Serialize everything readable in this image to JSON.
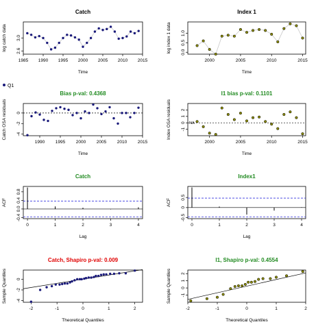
{
  "colors": {
    "black": "#000000",
    "navy_point": "#1a1a7a",
    "olive_point": "#8b8b00",
    "olive_stroke": "#000000",
    "green_title": "#228b22",
    "red_title": "#e00000",
    "line_grey": "#c8c8c8",
    "blue_dash": "#3333dd"
  },
  "legend": {
    "label": "Q1"
  },
  "chart_data": [
    {
      "id": "catch-ts",
      "type": "line",
      "title": "Catch",
      "title_color": "#000000",
      "xlabel": "Time",
      "ylabel": "log catch data",
      "xlim": [
        1985,
        2015
      ],
      "ylim": [
        2.5,
        3.5
      ],
      "xticks": [
        1985,
        1990,
        1995,
        2000,
        2005,
        2010,
        2015
      ],
      "yticks": [
        2.6,
        3.0
      ],
      "ytick_labels": [
        "2.6",
        "3.0"
      ],
      "point_style": "navy",
      "x": [
        1986,
        1987,
        1988,
        1989,
        1990,
        1991,
        1992,
        1993,
        1994,
        1995,
        1996,
        1997,
        1998,
        1999,
        2000,
        2001,
        2002,
        2003,
        2004,
        2005,
        2006,
        2007,
        2008,
        2009,
        2010,
        2011,
        2012,
        2013,
        2014
      ],
      "y": [
        3.15,
        3.1,
        3.02,
        3.06,
        3.0,
        2.85,
        2.65,
        2.7,
        2.85,
        3.0,
        3.1,
        3.08,
        3.02,
        2.95,
        2.73,
        2.85,
        3.0,
        3.2,
        3.3,
        3.25,
        3.28,
        3.35,
        3.2,
        2.98,
        3.0,
        3.05,
        3.2,
        3.15,
        3.22
      ]
    },
    {
      "id": "index-ts",
      "type": "line",
      "title": "Index 1",
      "title_color": "#000000",
      "xlabel": "Time",
      "ylabel": "log index 1 data",
      "xlim": [
        1996.5,
        2015.5
      ],
      "ylim": [
        -0.1,
        1.6
      ],
      "xticks": [
        2000,
        2005,
        2010,
        2015
      ],
      "yticks": [
        0.0,
        0.5,
        1.0
      ],
      "ytick_labels": [
        "0.0",
        "0.5",
        "1.0"
      ],
      "point_style": "olive",
      "x": [
        1998,
        1999,
        2000,
        2001,
        2002,
        2003,
        2004,
        2005,
        2006,
        2007,
        2008,
        2009,
        2010,
        2011,
        2012,
        2013,
        2014,
        2015
      ],
      "y": [
        0.35,
        0.6,
        0.15,
        -0.1,
        0.85,
        0.9,
        0.85,
        1.2,
        1.05,
        1.15,
        1.2,
        1.15,
        0.95,
        0.55,
        1.25,
        1.5,
        1.4,
        0.75
      ]
    },
    {
      "id": "catch-osa",
      "type": "scatter",
      "title": "Bias p-val: 0.4368",
      "title_color": "#228b22",
      "xlabel": "Time",
      "ylabel": "Catch OSA residuals",
      "xlim": [
        1986,
        2015
      ],
      "ylim": [
        -4.3,
        1.8
      ],
      "xticks": [
        1990,
        1995,
        2000,
        2005,
        2010,
        2015
      ],
      "yticks": [
        -4,
        -2,
        0
      ],
      "ytick_labels": [
        "-4",
        "-2",
        "0"
      ],
      "point_style": "navy",
      "hline": 0,
      "x": [
        1987,
        1988,
        1989,
        1990,
        1991,
        1992,
        1993,
        1994,
        1995,
        1996,
        1997,
        1998,
        1999,
        2000,
        2001,
        2002,
        2003,
        2004,
        2005,
        2006,
        2007,
        2008,
        2009,
        2010,
        2011,
        2012,
        2013,
        2014
      ],
      "y": [
        -4.2,
        -0.6,
        0.1,
        -0.3,
        -1.3,
        -1.5,
        0.4,
        0.9,
        1.1,
        0.8,
        0.6,
        -0.4,
        0.0,
        -1.0,
        0.3,
        0.0,
        1.6,
        0.9,
        -0.2,
        0.3,
        1.1,
        -1.0,
        -2.0,
        0.0,
        0.0,
        -0.8,
        0.0,
        1.0
      ]
    },
    {
      "id": "index-osa",
      "type": "scatter",
      "title": "I1 bias p-val: 0.1101",
      "title_color": "#228b22",
      "xlabel": "Time",
      "ylabel": "Index OSA residuals",
      "xlim": [
        1996.5,
        2015.5
      ],
      "ylim": [
        -2.0,
        3.0
      ],
      "xticks": [
        2000,
        2005,
        2010,
        2015
      ],
      "yticks": [
        -1,
        0,
        1,
        2
      ],
      "ytick_labels": [
        "-1",
        "0",
        "1",
        "2"
      ],
      "point_style": "olive",
      "hline": 0,
      "na_label": "NA",
      "x": [
        1998,
        1999,
        2000,
        2001,
        2002,
        2003,
        2004,
        2005,
        2006,
        2007,
        2008,
        2009,
        2010,
        2011,
        2012,
        2013,
        2014,
        2015
      ],
      "y": [
        0.2,
        -0.6,
        -1.6,
        -1.8,
        2.3,
        1.3,
        0.5,
        1.5,
        0.3,
        0.8,
        0.9,
        0.2,
        -0.2,
        -0.9,
        1.3,
        1.7,
        0.8,
        -1.7
      ]
    },
    {
      "id": "catch-acf",
      "type": "bar",
      "title": "Catch",
      "title_color": "#228b22",
      "xlabel": "Lag",
      "ylabel": "ACF",
      "xlim": [
        -0.15,
        4.15
      ],
      "ylim": [
        -0.45,
        1.05
      ],
      "xticks": [
        0,
        1,
        2,
        3,
        4
      ],
      "yticks": [
        -0.4,
        0.0,
        0.4,
        0.8
      ],
      "ytick_labels": [
        "-0.4",
        "0.0",
        "0.4",
        "0.8"
      ],
      "lags": [
        0,
        1,
        2,
        3,
        4
      ],
      "values": [
        1.0,
        0.12,
        0.06,
        -0.02,
        0.08
      ],
      "ci": 0.37
    },
    {
      "id": "index-acf",
      "type": "bar",
      "title": "Index1",
      "title_color": "#228b22",
      "xlabel": "Lag",
      "ylabel": "ACF",
      "xlim": [
        -0.15,
        4.15
      ],
      "ylim": [
        -0.55,
        1.05
      ],
      "xticks": [
        0,
        1,
        2,
        3,
        4
      ],
      "yticks": [
        -0.5,
        0.0,
        0.5
      ],
      "ytick_labels": [
        "-0.5",
        "0",
        "0.5"
      ],
      "lags": [
        0,
        1,
        2,
        3,
        4
      ],
      "values": [
        1.0,
        0.05,
        -0.35,
        -0.15,
        0.02
      ],
      "ci": 0.47
    },
    {
      "id": "catch-qq",
      "type": "scatter",
      "title": "Catch, Shapiro p-val: 0.009",
      "title_color": "#e00000",
      "xlabel": "Theoretical Quantiles",
      "ylabel": "Sample Quantiles",
      "xlim": [
        -2.3,
        2.3
      ],
      "ylim": [
        -4.3,
        1.7
      ],
      "xticks": [
        -2,
        -1,
        0,
        1,
        2
      ],
      "yticks": [
        -4,
        -2,
        0
      ],
      "ytick_labels": [
        "-4",
        "-2",
        "0"
      ],
      "point_style": "navy",
      "qqline": [
        [
          -2.3,
          -1.78
        ],
        [
          2.3,
          1.78
        ]
      ],
      "x": [
        -2.0,
        -1.65,
        -1.4,
        -1.2,
        -1.05,
        -0.9,
        -0.8,
        -0.7,
        -0.6,
        -0.5,
        -0.42,
        -0.32,
        -0.22,
        -0.12,
        -0.05,
        0.05,
        0.12,
        0.22,
        0.32,
        0.42,
        0.5,
        0.6,
        0.7,
        0.8,
        0.9,
        1.05,
        1.2,
        1.4,
        1.65,
        2.0
      ],
      "y": [
        -4.2,
        -2.0,
        -1.5,
        -1.3,
        -1.0,
        -1.0,
        -0.9,
        -0.8,
        -0.8,
        -0.6,
        -0.4,
        -0.2,
        0.0,
        0.0,
        0.0,
        0.1,
        0.2,
        0.3,
        0.3,
        0.4,
        0.6,
        0.6,
        0.8,
        0.9,
        0.9,
        1.0,
        1.0,
        1.1,
        1.1,
        1.6
      ]
    },
    {
      "id": "index-qq",
      "type": "scatter",
      "title": "I1, Shapiro p-val: 0.4554",
      "title_color": "#228b22",
      "xlabel": "Theoretical Quantiles",
      "ylabel": "Sample Quantiles",
      "xlim": [
        -2.0,
        2.0
      ],
      "ylim": [
        -2.0,
        2.5
      ],
      "xticks": [
        -2,
        -1,
        0,
        1,
        2
      ],
      "yticks": [
        -1,
        0,
        1,
        2
      ],
      "ytick_labels": [
        "-1",
        "0",
        "1",
        "2"
      ],
      "point_style": "olive",
      "qqline": [
        [
          -2.0,
          -1.6
        ],
        [
          2.0,
          2.1
        ]
      ],
      "x": [
        -1.9,
        -1.35,
        -1.0,
        -0.8,
        -0.55,
        -0.4,
        -0.28,
        -0.16,
        -0.05,
        0.05,
        0.16,
        0.28,
        0.4,
        0.55,
        0.8,
        1.0,
        1.35,
        1.9
      ],
      "y": [
        -1.8,
        -1.5,
        -1.3,
        -0.9,
        -0.1,
        0.2,
        0.3,
        0.3,
        0.5,
        0.8,
        0.8,
        0.9,
        1.2,
        1.3,
        1.3,
        1.5,
        1.7,
        2.3
      ]
    }
  ]
}
